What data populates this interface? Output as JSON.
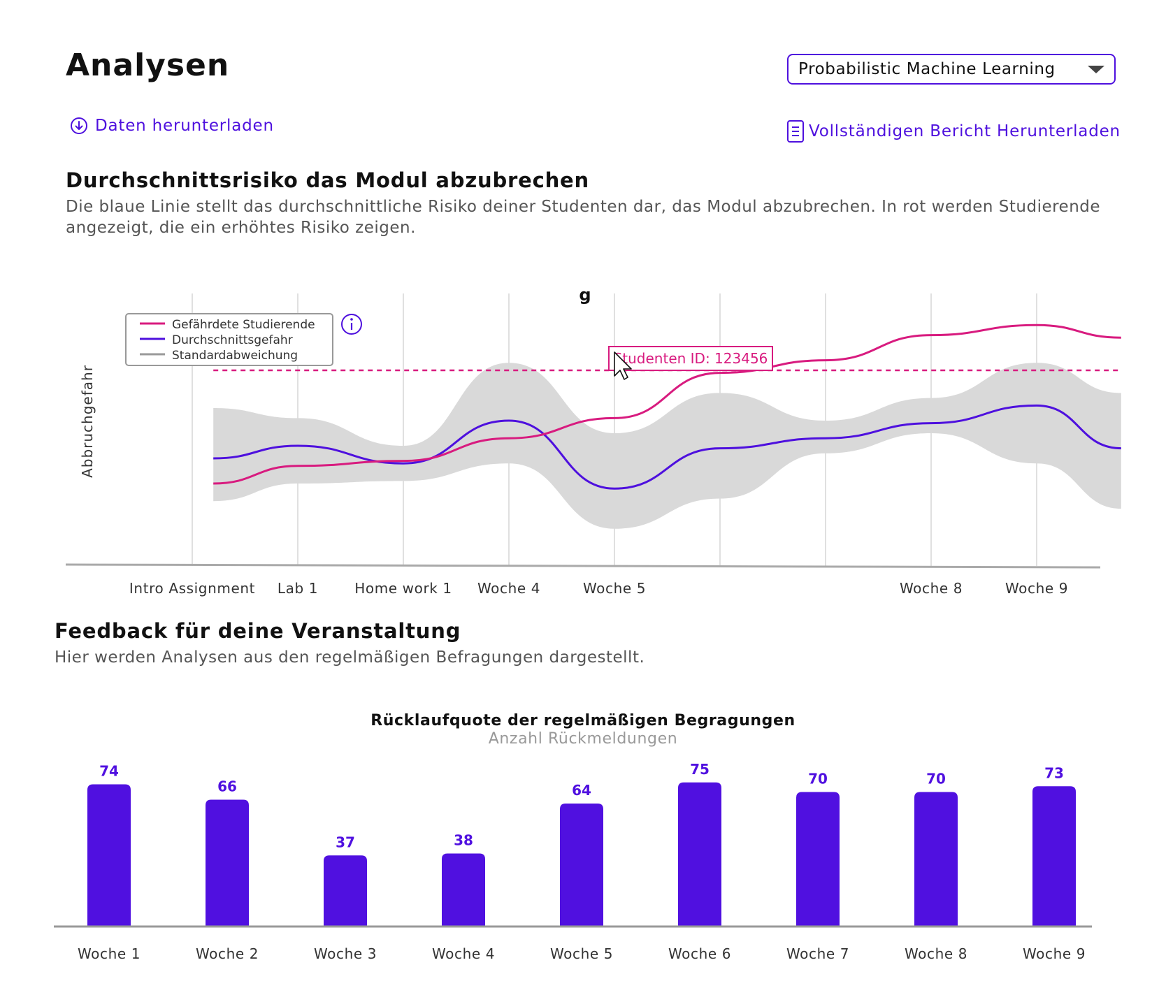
{
  "header": {
    "title": "Analysen",
    "course_select": {
      "selected": "Probabilistic Machine Learning"
    },
    "download_data_label": "Daten herunterladen",
    "download_report_label": "Vollständigen Bericht Herunterladen"
  },
  "risk_section": {
    "title": "Durchschnittsrisiko das Modul abzubrechen",
    "description": "Die blaue Linie stellt das durchschnittliche Risiko deiner Studenten dar, das Modul abzubrechen. In rot werden Studierende angezeigt, die ein erhöhtes Risiko zeigen."
  },
  "feedback_section": {
    "title": "Feedback für deine Veranstaltung",
    "description": "Hier werden Analysen aus den regelmäßigen Befragungen dargestellt."
  },
  "colors": {
    "accent": "#4e10de",
    "at_risk": "#d81b7f",
    "band": "#d9d9d9",
    "legend_gray": "#999999",
    "bar": "#5010e0"
  },
  "icons": {
    "download": "download-circle-icon",
    "report": "document-icon",
    "info": "info-circle-icon",
    "dropdown": "chevron-down-icon",
    "cursor": "mouse-cursor-icon"
  },
  "chart_data": [
    {
      "type": "line",
      "title": "g",
      "ylabel": "Abbruchgefahr",
      "x_ticks": [
        "Intro Assignment",
        "Lab 1",
        "Home work 1",
        "Woche 4",
        "Woche 5",
        "",
        "",
        "Woche 8",
        "Woche 9"
      ],
      "x": [
        0.2,
        1,
        2,
        3,
        4,
        5,
        6,
        7,
        8,
        8.8
      ],
      "ylim": [
        0,
        1
      ],
      "threshold": 0.75,
      "legend_position": "top-left",
      "grid": true,
      "series": [
        {
          "name": "Gefährdete Studierende",
          "kind": "line",
          "values": [
            0.3,
            0.37,
            0.39,
            0.48,
            0.56,
            0.74,
            0.79,
            0.89,
            0.93,
            0.88
          ]
        },
        {
          "name": "Durchschnittsgefahr",
          "kind": "line",
          "values": [
            0.4,
            0.45,
            0.38,
            0.55,
            0.28,
            0.44,
            0.48,
            0.54,
            0.61,
            0.44
          ]
        },
        {
          "name": "Standardabweichung",
          "kind": "band",
          "upper": [
            0.6,
            0.56,
            0.45,
            0.78,
            0.5,
            0.66,
            0.55,
            0.64,
            0.78,
            0.66
          ],
          "lower": [
            0.23,
            0.3,
            0.31,
            0.38,
            0.12,
            0.24,
            0.42,
            0.5,
            0.38,
            0.2
          ]
        }
      ],
      "tooltip": {
        "text": "Studenten ID: 123456"
      }
    },
    {
      "type": "bar",
      "title": "Rücklaufquote der regelmäßigen Begragungen",
      "subtitle": "Anzahl Rückmeldungen",
      "categories": [
        "Woche 1",
        "Woche 2",
        "Woche 3",
        "Woche 4",
        "Woche 5",
        "Woche 6",
        "Woche 7",
        "Woche 8",
        "Woche 9"
      ],
      "values": [
        74,
        66,
        37,
        38,
        64,
        75,
        70,
        70,
        73
      ],
      "ylim": [
        0,
        80
      ]
    }
  ]
}
